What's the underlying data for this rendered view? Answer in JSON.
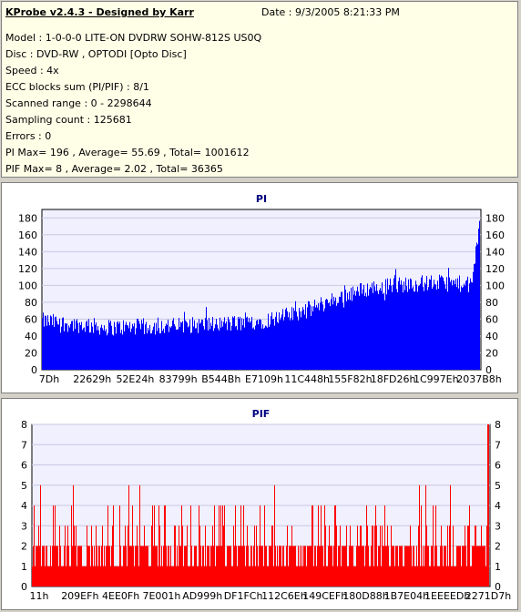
{
  "info": {
    "title": "KProbe v2.4.3 - Designed by Karr",
    "date": "Date : 9/3/2005 8:21:33 PM",
    "lines": [
      "Model : 1-0-0-0 LITE-ON DVDRW SOHW-812S  US0Q",
      "Disc : DVD-RW , OPTODI [Opto Disc]",
      "Speed : 4x",
      "ECC blocks sum (PI/PIF) : 8/1",
      "Scanned range : 0 - 2298644",
      "Sampling count : 125681",
      "Errors : 0",
      "PI Max= 196 , Average= 55.69 , Total= 1001612",
      "PIF Max= 8 , Average= 2.02 , Total= 36365"
    ]
  },
  "colors": {
    "pi_bar": "#0000ff",
    "pif_bar": "#ff0000",
    "plot_bg": "#f0f0ff",
    "grid": "#c8c8e0",
    "title": "#000080"
  },
  "chart_data": [
    {
      "type": "bar",
      "title": "PI",
      "x_tick_labels": [
        "7Dh",
        "22629h",
        "52E24h",
        "83799h",
        "B544Bh",
        "E7109h",
        "11C448h",
        "155F82h",
        "18FD26h",
        "1C997Eh",
        "2037B8h"
      ],
      "ylim": [
        0,
        190
      ],
      "y_ticks": [
        0,
        20,
        40,
        60,
        80,
        100,
        120,
        140,
        160,
        180
      ],
      "grid": true,
      "max": 196,
      "average": 55.69,
      "profile_x": [
        0,
        0.05,
        0.15,
        0.3,
        0.45,
        0.5,
        0.55,
        0.6,
        0.65,
        0.7,
        0.75,
        0.8,
        0.85,
        0.9,
        0.95,
        0.98,
        0.99,
        1.0
      ],
      "profile_y": [
        58,
        55,
        50,
        52,
        55,
        58,
        63,
        70,
        80,
        90,
        97,
        100,
        102,
        103,
        102,
        100,
        140,
        180
      ],
      "noise": 10
    },
    {
      "type": "bar",
      "title": "PIF",
      "x_tick_labels": [
        "11h",
        "209EFh",
        "4EE0Fh",
        "7E001h",
        "AD999h",
        "DF1FCh",
        "112C6Eh",
        "149CEFh",
        "180D88h",
        "1B7E04h",
        "1EEEEDh",
        "2271D7h"
      ],
      "ylim": [
        0,
        8
      ],
      "y_ticks": [
        0,
        1,
        2,
        3,
        4,
        5,
        6,
        7,
        8
      ],
      "grid": true,
      "max": 8,
      "average": 2.02,
      "level_weights": {
        "1": 0.28,
        "2": 0.5,
        "3": 0.12,
        "4": 0.08,
        "5": 0.02
      }
    }
  ]
}
